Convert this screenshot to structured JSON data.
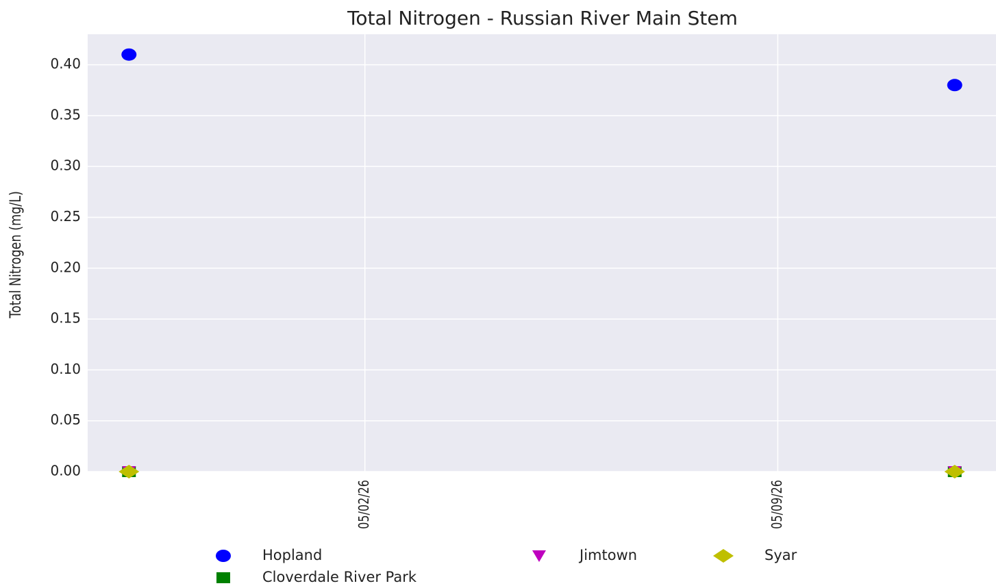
{
  "chart_data": {
    "type": "scatter",
    "title": "Total Nitrogen - Russian River Main Stem",
    "y_label": "Total Nitrogen (mg/L)",
    "x": [
      "2026-04-28",
      "2026-05-12"
    ],
    "xlim": [
      "2026-04-27T07:12",
      "2026-05-12T16:48"
    ],
    "xticks": [
      {
        "value": "2026-05-02",
        "label": "05/02/26"
      },
      {
        "value": "2026-05-09",
        "label": "05/09/26"
      }
    ],
    "ylim": [
      0,
      0.43
    ],
    "yticks": [
      {
        "value": 0,
        "label": "0.00"
      },
      {
        "value": 0.05,
        "label": "0.05"
      },
      {
        "value": 0.1,
        "label": "0.10"
      },
      {
        "value": 0.15,
        "label": "0.15"
      },
      {
        "value": 0.2,
        "label": "0.20"
      },
      {
        "value": 0.25,
        "label": "0.25"
      },
      {
        "value": 0.3,
        "label": "0.30"
      },
      {
        "value": 0.35,
        "label": "0.35"
      },
      {
        "value": 0.4,
        "label": "0.40"
      }
    ],
    "grid": true,
    "legend": "bottom",
    "series": [
      {
        "name": "Hopland",
        "color": "#0000ff",
        "marker": "o",
        "values": [
          0.41,
          0.38
        ]
      },
      {
        "name": "Cloverdale River Park",
        "color": "#008000",
        "marker": "s",
        "values": [
          0,
          0
        ]
      },
      {
        "name": "Jimtown",
        "color": "#bf00bf",
        "marker": "v",
        "values": [
          0,
          0
        ]
      },
      {
        "name": "Syar",
        "color": "#bfbf00",
        "marker": "D",
        "values": [
          0,
          0
        ]
      }
    ]
  }
}
